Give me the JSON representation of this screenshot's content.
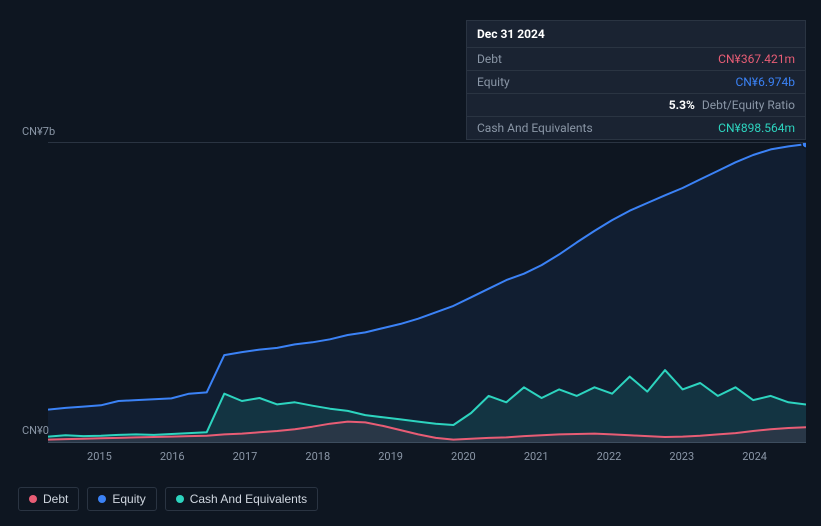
{
  "tooltip": {
    "date": "Dec 31 2024",
    "rows": [
      {
        "label": "Debt",
        "value": "CN¥367.421m",
        "color": "#e85d75",
        "extra": ""
      },
      {
        "label": "Equity",
        "value": "CN¥6.974b",
        "color": "#3b82f6",
        "extra": ""
      },
      {
        "label": "",
        "value": "5.3%",
        "color": "#ffffff",
        "extra": "Debt/Equity Ratio"
      },
      {
        "label": "Cash And Equivalents",
        "value": "CN¥898.564m",
        "color": "#2dd4bf",
        "extra": ""
      }
    ]
  },
  "chart": {
    "type": "line",
    "ymax_label": "CN¥7b",
    "ymin_label": "CN¥0",
    "ylim": [
      0,
      7000
    ],
    "x_labels": [
      "2015",
      "2016",
      "2017",
      "2018",
      "2019",
      "2020",
      "2021",
      "2022",
      "2023",
      "2024"
    ],
    "x_count": 44,
    "background": "#0e1621",
    "grid_color": "#2a3442",
    "series": [
      {
        "name": "Equity",
        "color": "#3b82f6",
        "fill_opacity": 0.08,
        "stroke_width": 2,
        "values": [
          780,
          820,
          850,
          880,
          980,
          1000,
          1020,
          1040,
          1150,
          1180,
          2050,
          2120,
          2180,
          2220,
          2300,
          2350,
          2420,
          2520,
          2580,
          2680,
          2780,
          2900,
          3050,
          3200,
          3400,
          3600,
          3800,
          3950,
          4150,
          4400,
          4680,
          4950,
          5200,
          5420,
          5600,
          5780,
          5950,
          6150,
          6350,
          6550,
          6720,
          6850,
          6920,
          6974
        ]
      },
      {
        "name": "Cash And Equivalents",
        "color": "#2dd4bf",
        "fill_opacity": 0.12,
        "stroke_width": 2,
        "values": [
          150,
          180,
          160,
          170,
          190,
          200,
          190,
          210,
          230,
          250,
          1150,
          980,
          1050,
          900,
          950,
          870,
          800,
          750,
          650,
          600,
          550,
          500,
          450,
          420,
          700,
          1100,
          950,
          1300,
          1050,
          1250,
          1100,
          1300,
          1150,
          1550,
          1200,
          1700,
          1250,
          1400,
          1100,
          1300,
          1000,
          1100,
          950,
          899
        ]
      },
      {
        "name": "Debt",
        "color": "#e85d75",
        "fill_opacity": 0.1,
        "stroke_width": 2,
        "values": [
          80,
          90,
          100,
          110,
          120,
          130,
          140,
          150,
          160,
          170,
          200,
          220,
          250,
          280,
          320,
          380,
          450,
          500,
          480,
          400,
          300,
          200,
          120,
          80,
          100,
          120,
          130,
          160,
          180,
          200,
          210,
          220,
          200,
          180,
          160,
          140,
          150,
          170,
          200,
          230,
          280,
          320,
          350,
          367
        ]
      }
    ],
    "end_marker_color": "#3b82f6",
    "end_marker_radius": 4
  },
  "legend": [
    {
      "label": "Debt",
      "color": "#e85d75"
    },
    {
      "label": "Equity",
      "color": "#3b82f6"
    },
    {
      "label": "Cash And Equivalents",
      "color": "#2dd4bf"
    }
  ]
}
